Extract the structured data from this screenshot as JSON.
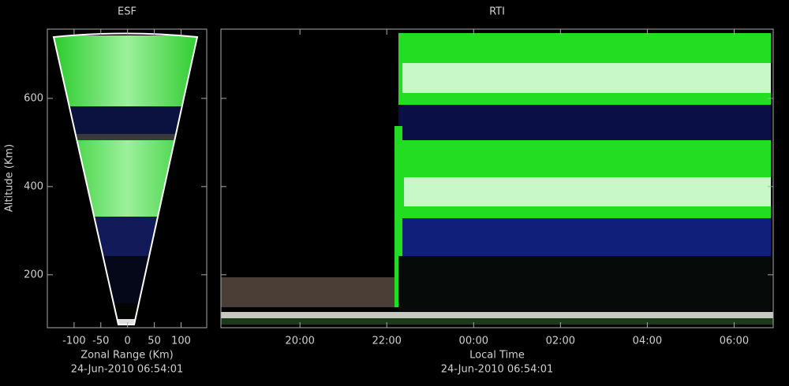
{
  "chart_data": [
    {
      "type": "fan",
      "title": "ESF",
      "xlabel": "Zonal Range (Km)",
      "ylabel": "Altitude (Km)",
      "caption": "24-Jun-2010 06:54:01",
      "xlim": [
        -150,
        148
      ],
      "xticks": [
        -100,
        -50,
        0,
        50,
        100
      ],
      "ylim": [
        80,
        757
      ],
      "yticks": [
        200,
        400,
        600
      ]
    },
    {
      "type": "rti",
      "title": "RTI",
      "xlabel": "Local Time",
      "caption": "24-Jun-2010 06:54:01",
      "xlim": [
        18.18,
        30.9
      ],
      "xticks": [
        {
          "value": 20,
          "label": "20:00"
        },
        {
          "value": 22,
          "label": "22:00"
        },
        {
          "value": 24,
          "label": "00:00"
        },
        {
          "value": 26,
          "label": "02:00"
        },
        {
          "value": 28,
          "label": "04:00"
        },
        {
          "value": 30,
          "label": "06:00"
        }
      ],
      "ylim": [
        80,
        757
      ],
      "yticks": [
        200,
        400,
        600
      ]
    }
  ]
}
